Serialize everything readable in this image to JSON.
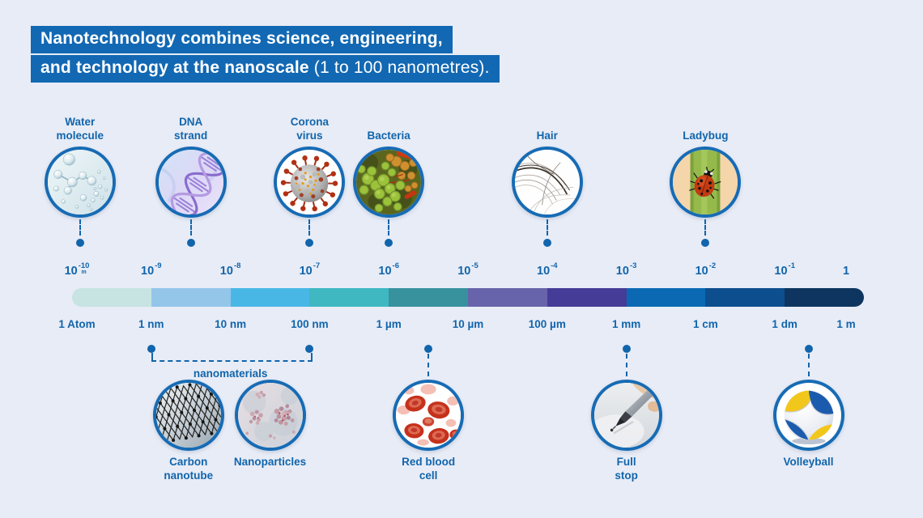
{
  "title": {
    "line1": "Nanotechnology combines science, engineering,",
    "line2_bold": "and technology at the nanoscale",
    "line2_rest": " (1 to 100 nanometres)."
  },
  "colors": {
    "background": "#e8ecf6",
    "title_bg": "#1268b3",
    "text_blue": "#1165ac",
    "circle_border": "#176bb4",
    "connector": "#1165ac"
  },
  "scale": {
    "ticks": [
      {
        "base": "10",
        "sup": "-10",
        "note": "m"
      },
      {
        "base": "10",
        "sup": "-9",
        "note": ""
      },
      {
        "base": "10",
        "sup": "-8",
        "note": ""
      },
      {
        "base": "10",
        "sup": "-7",
        "note": ""
      },
      {
        "base": "10",
        "sup": "-6",
        "note": ""
      },
      {
        "base": "10",
        "sup": "-5",
        "note": ""
      },
      {
        "base": "10",
        "sup": "-4",
        "note": ""
      },
      {
        "base": "10",
        "sup": "-3",
        "note": ""
      },
      {
        "base": "10",
        "sup": "-2",
        "note": ""
      },
      {
        "base": "10",
        "sup": "-1",
        "note": ""
      },
      {
        "base": "1",
        "sup": "",
        "note": ""
      }
    ],
    "units": [
      "1 Atom",
      "1 nm",
      "10 nm",
      "100 nm",
      "1 µm",
      "10 µm",
      "100 µm",
      "1 mm",
      "1 cm",
      "1 dm",
      "1 m"
    ],
    "segment_colors": [
      "#c7e3e2",
      "#93c6e9",
      "#49b7e6",
      "#3fb8c1",
      "#38929e",
      "#6764ab",
      "#453c98",
      "#0b69b4",
      "#0d4e8e",
      "#0d3560"
    ]
  },
  "top_items": [
    {
      "name": "water-molecule",
      "lines": [
        "Water",
        "molecule"
      ],
      "index": 0.1
    },
    {
      "name": "dna-strand",
      "lines": [
        "DNA",
        "strand"
      ],
      "index": 1.5
    },
    {
      "name": "corona-virus",
      "lines": [
        "Corona",
        "virus"
      ],
      "index": 3
    },
    {
      "name": "bacteria",
      "lines": [
        "Bacteria"
      ],
      "index": 4
    },
    {
      "name": "hair",
      "lines": [
        "Hair"
      ],
      "index": 6
    },
    {
      "name": "ladybug",
      "lines": [
        "Ladybug"
      ],
      "index": 8
    }
  ],
  "bottom_items": [
    {
      "name": "carbon-nanotube",
      "lines": [
        "Carbon",
        "nanotube"
      ],
      "index": 1.47,
      "connector": false
    },
    {
      "name": "nanoparticles",
      "lines": [
        "Nanoparticles"
      ],
      "index": 2.5,
      "connector": false
    },
    {
      "name": "red-blood-cell",
      "lines": [
        "Red blood",
        "cell"
      ],
      "index": 4.5,
      "connector": true
    },
    {
      "name": "full-stop",
      "lines": [
        "Full",
        "stop"
      ],
      "index": 7,
      "connector": true
    },
    {
      "name": "volleyball",
      "lines": [
        "Volleyball"
      ],
      "index": 9.3,
      "connector": true
    }
  ],
  "nanomaterials": {
    "label": "nanomaterials",
    "from_index": 1,
    "to_index": 3
  }
}
